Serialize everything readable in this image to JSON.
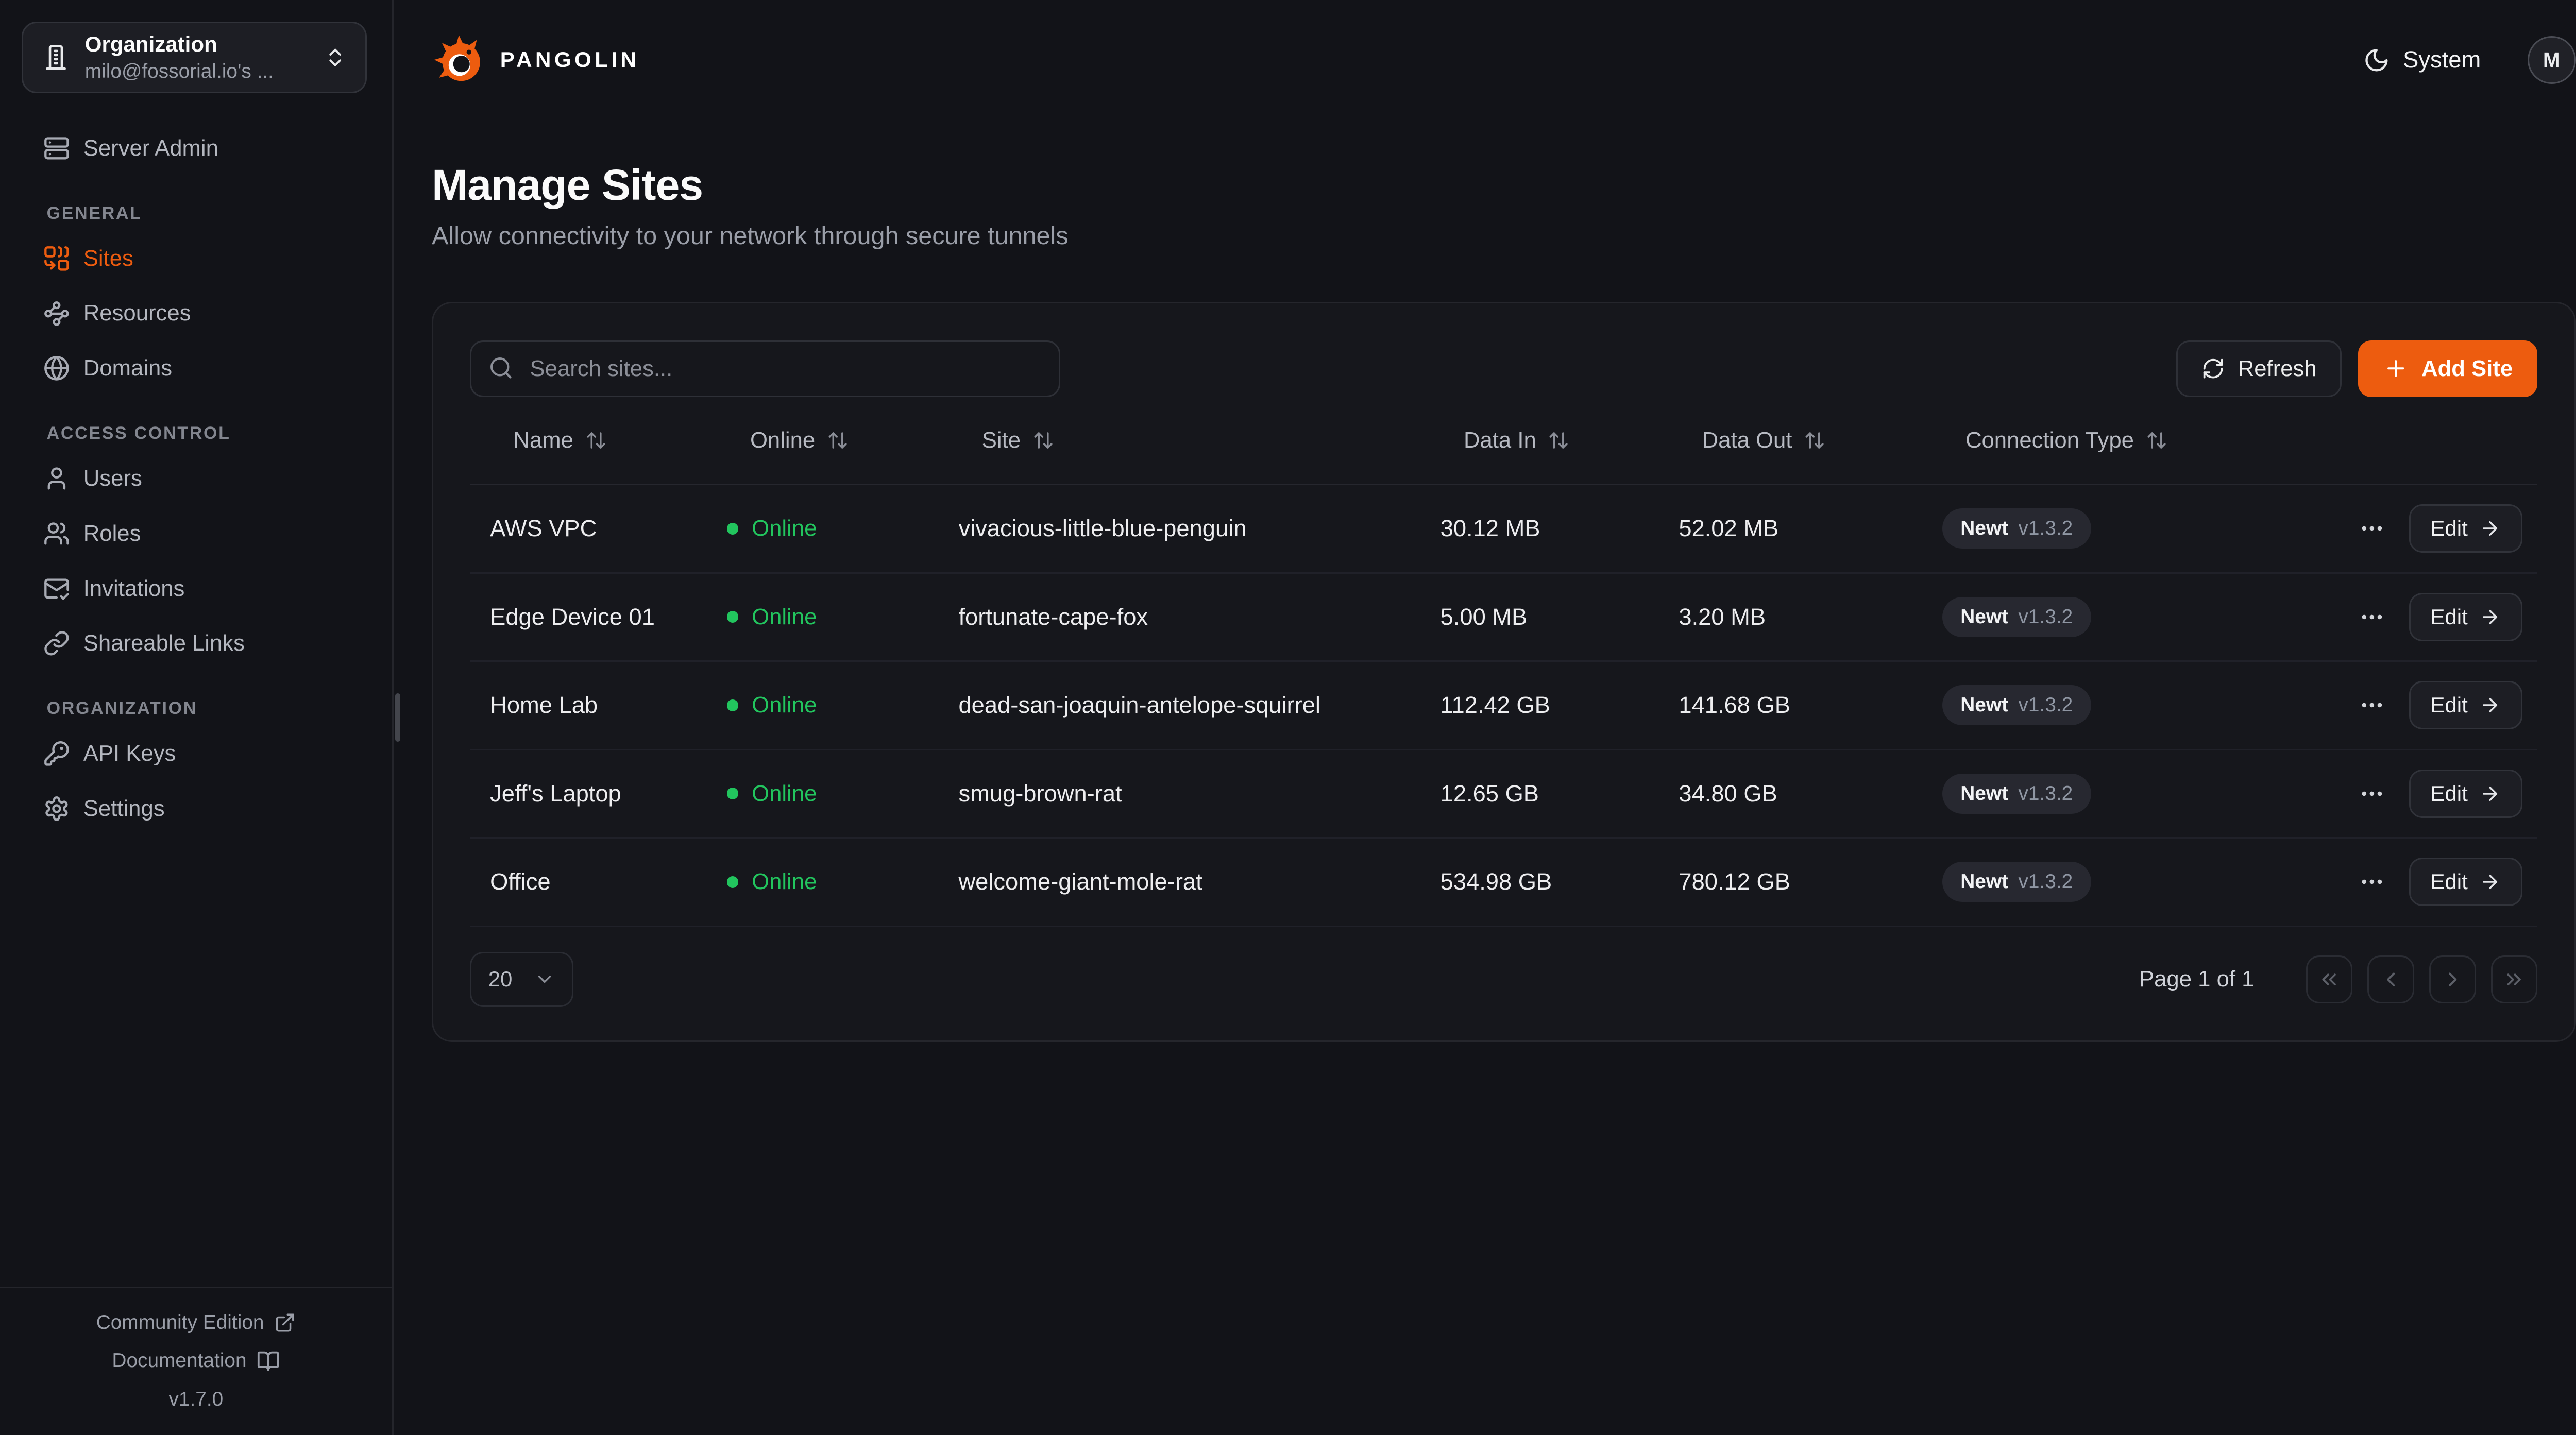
{
  "brand": {
    "logo_icon": "pangolin-logo",
    "name": "PANGOLIN"
  },
  "topbar": {
    "theme": {
      "icon": "moon",
      "label": "System"
    },
    "avatar": {
      "initial": "M"
    }
  },
  "org_switcher": {
    "icon": "building",
    "title": "Organization",
    "subtitle": "milo@fossorial.io's ...",
    "chevron_icon": "chevrons-up-down"
  },
  "sidebar": {
    "server_admin": {
      "icon": "server",
      "label": "Server Admin"
    },
    "sections": [
      {
        "title": "GENERAL",
        "items": [
          {
            "id": "sites",
            "icon": "combine",
            "label": "Sites",
            "active": true
          },
          {
            "id": "resources",
            "icon": "waypoints",
            "label": "Resources",
            "active": false
          },
          {
            "id": "domains",
            "icon": "globe",
            "label": "Domains",
            "active": false
          }
        ]
      },
      {
        "title": "ACCESS CONTROL",
        "items": [
          {
            "id": "users",
            "icon": "user",
            "label": "Users",
            "active": false
          },
          {
            "id": "roles",
            "icon": "users",
            "label": "Roles",
            "active": false
          },
          {
            "id": "invitations",
            "icon": "mail-check",
            "label": "Invitations",
            "active": false
          },
          {
            "id": "shareable-links",
            "icon": "link",
            "label": "Shareable Links",
            "active": false
          }
        ]
      },
      {
        "title": "ORGANIZATION",
        "items": [
          {
            "id": "api-keys",
            "icon": "key",
            "label": "API Keys",
            "active": false
          },
          {
            "id": "settings",
            "icon": "settings",
            "label": "Settings",
            "active": false
          }
        ]
      }
    ],
    "footer": {
      "community_label": "Community Edition",
      "community_icon": "external-link",
      "docs_label": "Documentation",
      "docs_icon": "book-open",
      "version": "v1.7.0"
    }
  },
  "page": {
    "title": "Manage Sites",
    "subtitle": "Allow connectivity to your network through secure tunnels"
  },
  "toolbar": {
    "search_placeholder": "Search sites...",
    "search_icon": "search",
    "refresh_label": "Refresh",
    "refresh_icon": "refresh",
    "add_label": "Add Site",
    "add_icon": "plus"
  },
  "table": {
    "columns": [
      {
        "id": "name",
        "label": "Name"
      },
      {
        "id": "online",
        "label": "Online"
      },
      {
        "id": "site",
        "label": "Site"
      },
      {
        "id": "data-in",
        "label": "Data In"
      },
      {
        "id": "data-out",
        "label": "Data Out"
      },
      {
        "id": "connection-type",
        "label": "Connection Type"
      }
    ],
    "rows": [
      {
        "name": "AWS VPC",
        "status": "Online",
        "site": "vivacious-little-blue-penguin",
        "data_in": "30.12 MB",
        "data_out": "52.02 MB",
        "conn_name": "Newt",
        "conn_version": "v1.3.2",
        "edit_label": "Edit"
      },
      {
        "name": "Edge Device 01",
        "status": "Online",
        "site": "fortunate-cape-fox",
        "data_in": "5.00 MB",
        "data_out": "3.20 MB",
        "conn_name": "Newt",
        "conn_version": "v1.3.2",
        "edit_label": "Edit"
      },
      {
        "name": "Home Lab",
        "status": "Online",
        "site": "dead-san-joaquin-antelope-squirrel",
        "data_in": "112.42 GB",
        "data_out": "141.68 GB",
        "conn_name": "Newt",
        "conn_version": "v1.3.2",
        "edit_label": "Edit"
      },
      {
        "name": "Jeff's Laptop",
        "status": "Online",
        "site": "smug-brown-rat",
        "data_in": "12.65 GB",
        "data_out": "34.80 GB",
        "conn_name": "Newt",
        "conn_version": "v1.3.2",
        "edit_label": "Edit"
      },
      {
        "name": "Office",
        "status": "Online",
        "site": "welcome-giant-mole-rat",
        "data_in": "534.98 GB",
        "data_out": "780.12 GB",
        "conn_name": "Newt",
        "conn_version": "v1.3.2",
        "edit_label": "Edit"
      }
    ]
  },
  "pagination": {
    "page_size": "20",
    "page_label": "Page 1 of 1",
    "buttons": [
      {
        "id": "first-page-button",
        "icon": "chevrons-left"
      },
      {
        "id": "prev-page-button",
        "icon": "chevron-left"
      },
      {
        "id": "next-page-button",
        "icon": "chevron-right"
      },
      {
        "id": "last-page-button",
        "icon": "chevrons-right"
      }
    ]
  },
  "colors": {
    "accent": "#ed5c0f",
    "online_green": "#22c55e",
    "background": "#121318",
    "card": "#16171c"
  }
}
